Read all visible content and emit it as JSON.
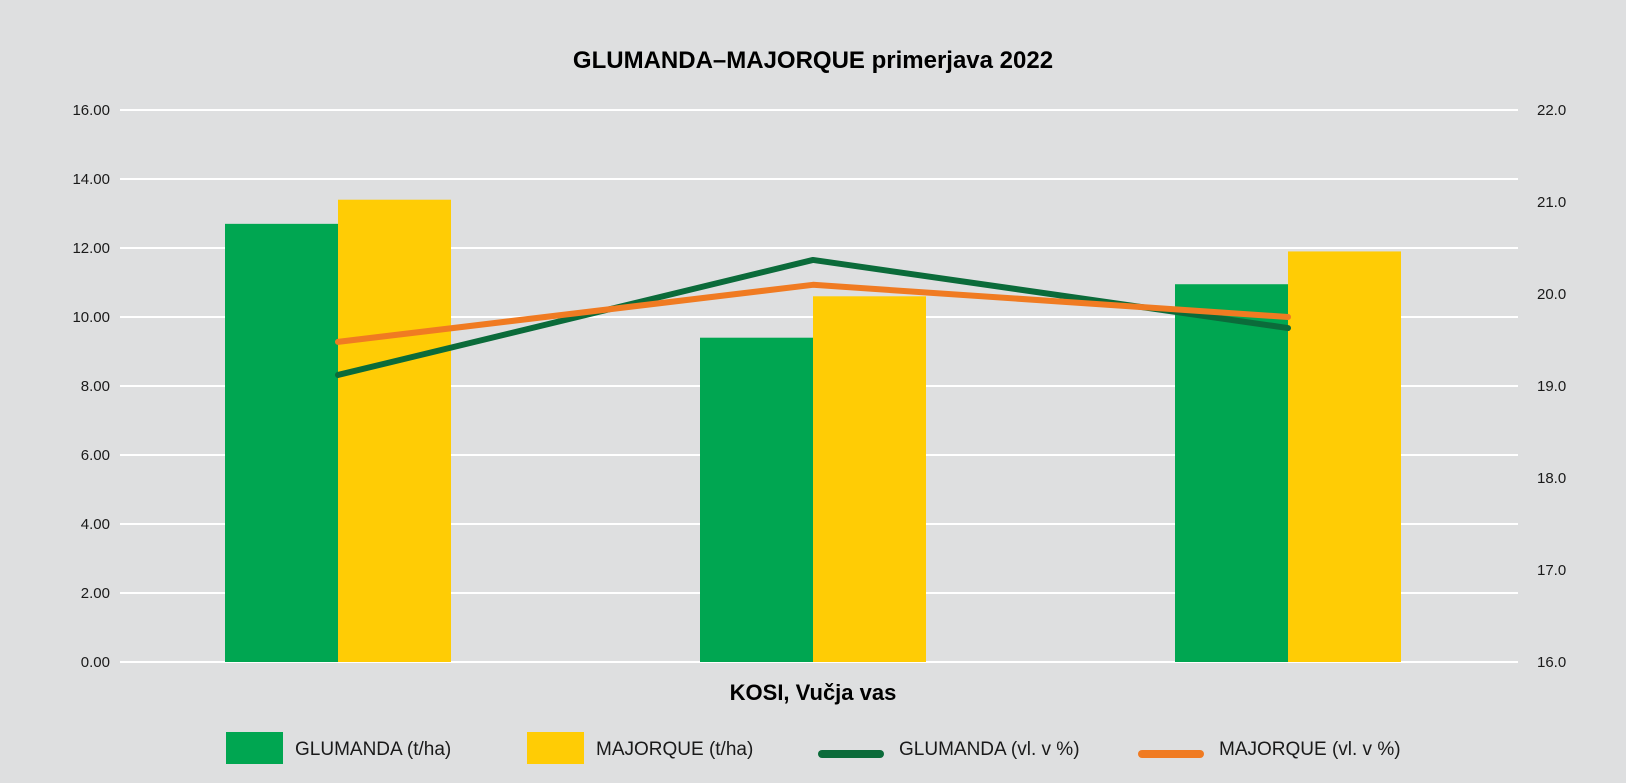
{
  "chart_data": {
    "type": "bar",
    "title": "GLUMANDA–MAJORQUE primerjava 2022",
    "xlabel": "KOSI, Vučja vas",
    "ylim": [
      0,
      16
    ],
    "y2lim": [
      16,
      22
    ],
    "yticks": [
      "0.00",
      "2.00",
      "4.00",
      "6.00",
      "8.00",
      "10.00",
      "12.00",
      "14.00",
      "16.00"
    ],
    "y2ticks": [
      "16.0",
      "17.0",
      "18.0",
      "19.0",
      "20.0",
      "21.0",
      "22.0"
    ],
    "grid": true,
    "legend_position": "bottom",
    "categories": [
      "",
      "",
      ""
    ],
    "series": [
      {
        "name": "GLUMANDA (t/ha)",
        "type": "bar",
        "axis": "left",
        "color": "#00a651",
        "values": [
          12.7,
          9.4,
          10.95
        ]
      },
      {
        "name": "MAJORQUE (t/ha)",
        "type": "bar",
        "axis": "left",
        "color": "#ffcc05",
        "values": [
          13.4,
          10.6,
          11.9
        ]
      },
      {
        "name": "GLUMANDA (vl. v %)",
        "type": "line",
        "axis": "right",
        "color": "#0b6b3a",
        "values": [
          19.12,
          20.37,
          19.63
        ]
      },
      {
        "name": "MAJORQUE (vl. v %)",
        "type": "line",
        "axis": "right",
        "color": "#f07b22",
        "values": [
          19.48,
          20.1,
          19.75
        ]
      }
    ]
  }
}
